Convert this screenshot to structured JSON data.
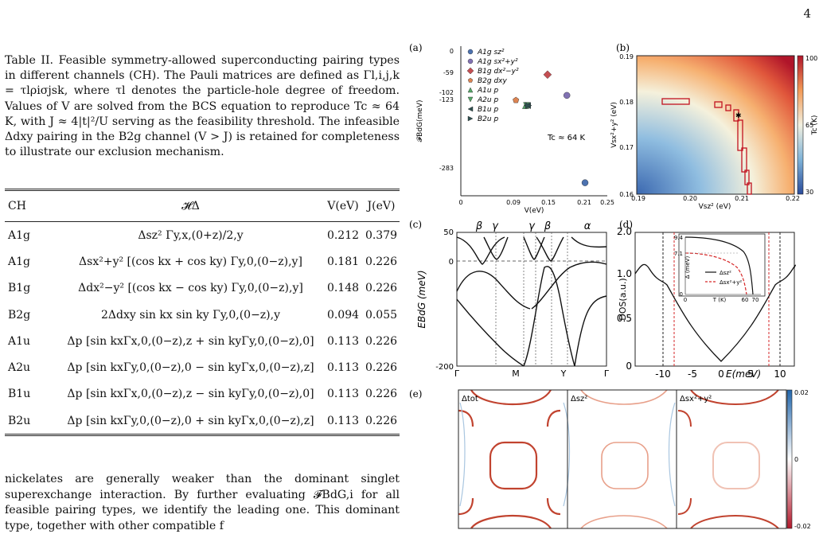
{
  "page_number": "4",
  "caption": "Table II. Feasible symmetry-allowed superconducting pairing types in different channels (CH). The Pauli matrices are defined as Γl,i,j,k = τlρiσjsk, where τl denotes the particle-hole degree of freedom. Values of V are solved from the BCS equation to reproduce Tc ≈ 64 K, with J ≈ 4|t|²/U serving as the feasibility threshold. The infeasible Δdxy pairing in the B2g channel (V > J) is retained for completeness to illustrate our exclusion mechanism.",
  "table": {
    "headers": {
      "ch": "CH",
      "h": "𝓗Δ",
      "v": "V(eV)",
      "j": "J(eV)"
    },
    "rows": [
      {
        "ch": "A1g",
        "h": "Δsz² Γy,x,(0+z)/2,y",
        "v": "0.212",
        "j": "0.379"
      },
      {
        "ch": "A1g",
        "h": "Δsx²+y² [(cos kx + cos ky) Γy,0,(0−z),y]",
        "v": "0.181",
        "j": "0.226"
      },
      {
        "ch": "B1g",
        "h": "Δdx²−y² [(cos kx − cos ky) Γy,0,(0−z),y]",
        "v": "0.148",
        "j": "0.226"
      },
      {
        "ch": "B2g",
        "h": "2Δdxy sin kx sin ky Γy,0,(0−z),y",
        "v": "0.094",
        "j": "0.055"
      },
      {
        "ch": "A1u",
        "h": "Δp [sin kxΓx,0,(0−z),z + sin kyΓy,0,(0−z),0]",
        "v": "0.113",
        "j": "0.226"
      },
      {
        "ch": "A2u",
        "h": "Δp [sin kxΓy,0,(0−z),0 − sin kyΓx,0,(0−z),z]",
        "v": "0.113",
        "j": "0.226"
      },
      {
        "ch": "B1u",
        "h": "Δp [sin kxΓx,0,(0−z),z − sin kyΓy,0,(0−z),0]",
        "v": "0.113",
        "j": "0.226"
      },
      {
        "ch": "B2u",
        "h": "Δp [sin kxΓy,0,(0−z),0 + sin kyΓx,0,(0−z),z]",
        "v": "0.113",
        "j": "0.226"
      }
    ]
  },
  "body_text": "nickelates are generally weaker than the dominant singlet superexchange interaction. By further evaluating 𝓕BdG,i for all feasible pairing types, we identify the leading one. This dominant type, together with other compatible f",
  "figure": {
    "panel_labels": [
      "(a)",
      "(b)",
      "(c)",
      "(d)",
      "(e)"
    ],
    "a": {
      "xlabel": "V(eV)",
      "ylabel": "𝓕BdG(meV)",
      "xticks": [
        "0",
        "0.09",
        "0.15",
        "0.21",
        "0.25"
      ],
      "yticks": [
        "0",
        "-59",
        "-102",
        "-123",
        "-283"
      ],
      "annotation": "Tc ≈ 64 K",
      "legend": [
        "A1g sz²",
        "A1g sx²+y²",
        "B1g dx²−y²",
        "B2g dxy",
        "A1u p",
        "A2u p",
        "B1u p",
        "B2u p"
      ]
    },
    "b": {
      "xlabel": "Vsz² (eV)",
      "ylabel": "Vsx²+y² (eV)",
      "xticks": [
        "0.19",
        "0.20",
        "0.21",
        "0.22"
      ],
      "yticks": [
        "0.16",
        "0.17",
        "0.18",
        "0.19"
      ],
      "colorbar_label": "Tc (K)",
      "colorbar_ticks": [
        "100",
        "65",
        "30"
      ]
    },
    "c": {
      "ylabel": "EBdG (meV)",
      "yticks": [
        "50",
        "0",
        "-200"
      ],
      "kpath": [
        "Γ",
        "M",
        "Y",
        "Γ"
      ],
      "band_labels": [
        "β",
        "γ",
        "γ",
        "β",
        "α"
      ]
    },
    "d": {
      "xlabel": "E(meV)",
      "ylabel": "DOS(a.u.)",
      "xticks": [
        "-10",
        "-5",
        "0",
        "5",
        "10"
      ],
      "yticks": [
        "2.0",
        "1.0",
        "0.5",
        "0"
      ],
      "inset": {
        "xlabel": "T (K)",
        "ylabel": "Δ (meV)",
        "xticks": [
          "0",
          "60",
          "70"
        ],
        "yticks": [
          "9.4",
          "7.1",
          "0"
        ],
        "legend": [
          "Δsz²",
          "Δsx²+y²"
        ]
      }
    },
    "e": {
      "titles": [
        "Δtot",
        "Δsz²",
        "Δsx²+y²"
      ],
      "colorbar_ticks": [
        "0.02",
        "0",
        "-0.02"
      ]
    }
  },
  "chart_data": [
    {
      "type": "scatter",
      "panel": "(a)",
      "xlabel": "V(eV)",
      "ylabel": "𝓕BdG(meV)",
      "xlim": [
        0,
        0.25
      ],
      "ylim": [
        -310,
        0
      ],
      "series": [
        {
          "name": "A1g sz²",
          "color": "#4c72b0",
          "marker": "circle",
          "x": [
            0.212
          ],
          "y": [
            -283
          ]
        },
        {
          "name": "A1g sx²+y²",
          "color": "#8172b3",
          "marker": "circle",
          "x": [
            0.181
          ],
          "y": [
            -102
          ]
        },
        {
          "name": "B1g dx²−y²",
          "color": "#c44e52",
          "marker": "diamond",
          "x": [
            0.148
          ],
          "y": [
            -59
          ]
        },
        {
          "name": "B2g dxy",
          "color": "#dd8452",
          "marker": "pentagon",
          "x": [
            0.094
          ],
          "y": [
            -112
          ]
        },
        {
          "name": "A1u p",
          "color": "#55a868",
          "marker": "triangle-up",
          "x": [
            0.113
          ],
          "y": [
            -123
          ]
        },
        {
          "name": "A2u p",
          "color": "#55a868",
          "marker": "triangle-down",
          "x": [
            0.113
          ],
          "y": [
            -123
          ]
        },
        {
          "name": "B1u p",
          "color": "#2f4f4f",
          "marker": "triangle-left",
          "x": [
            0.113
          ],
          "y": [
            -123
          ]
        },
        {
          "name": "B2u p",
          "color": "#2f4f4f",
          "marker": "triangle-right",
          "x": [
            0.113
          ],
          "y": [
            -123
          ]
        }
      ]
    },
    {
      "type": "heatmap",
      "panel": "(b)",
      "xlabel": "Vsz² (eV)",
      "ylabel": "Vsx²+y² (eV)",
      "xlim": [
        0.19,
        0.22
      ],
      "ylim": [
        0.16,
        0.19
      ],
      "colorbar": {
        "label": "Tc (K)",
        "min": 30,
        "max": 100
      },
      "marker": {
        "x": 0.2095,
        "y": 0.1785
      }
    },
    {
      "type": "line",
      "panel": "(d)",
      "xlabel": "E(meV)",
      "ylabel": "DOS(a.u.)",
      "xlim": [
        -12,
        12
      ],
      "ylim": [
        0,
        2.0
      ],
      "vlines": [
        -9.4,
        -7.1,
        7.1,
        9.4
      ]
    }
  ]
}
